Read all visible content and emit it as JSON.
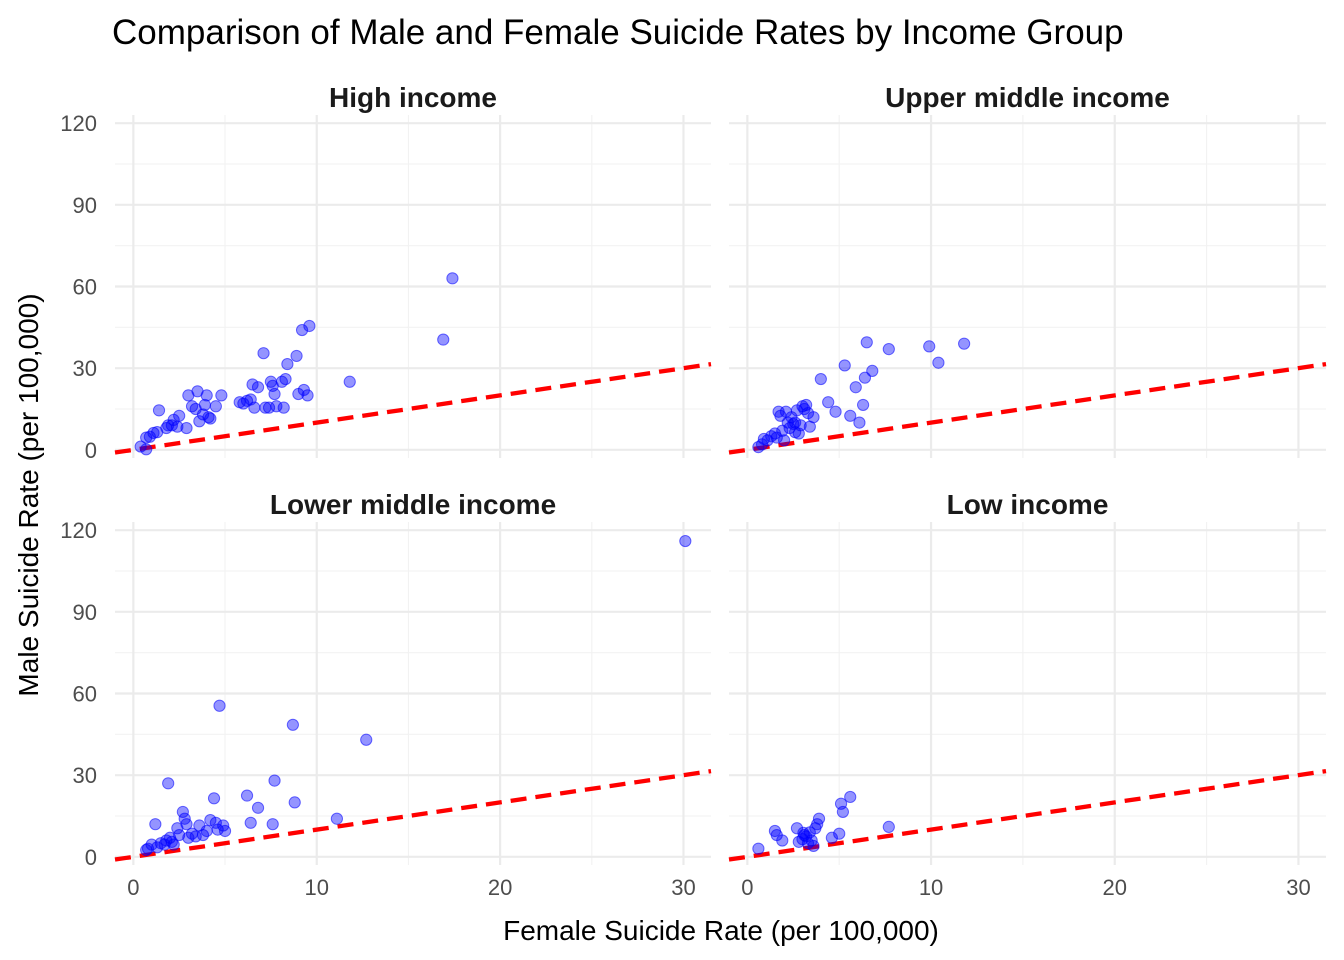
{
  "chart_data": {
    "type": "scatter",
    "title": "Comparison of Male and Female Suicide Rates by Income Group",
    "xlabel": "Female Suicide Rate (per 100,000)",
    "ylabel": "Male Suicide Rate (per 100,000)",
    "xlim": [
      -1,
      31.5
    ],
    "ylim": [
      -3,
      123
    ],
    "x_ticks": [
      0,
      10,
      20,
      30
    ],
    "y_ticks": [
      0,
      30,
      60,
      90,
      120
    ],
    "grid": true,
    "legend": "none",
    "point_color": "#0000FF",
    "reference_line": {
      "slope": 1,
      "intercept": 0,
      "color": "#FF0000",
      "style": "dashed"
    },
    "facets": [
      {
        "label": "High income",
        "points": [
          [
            0.4,
            1.2
          ],
          [
            0.7,
            0.2
          ],
          [
            0.7,
            4.5
          ],
          [
            0.9,
            4.8
          ],
          [
            1.1,
            6.2
          ],
          [
            1.3,
            6.5
          ],
          [
            1.4,
            14.5
          ],
          [
            1.8,
            8.0
          ],
          [
            1.9,
            9.0
          ],
          [
            2.1,
            9.0
          ],
          [
            2.2,
            11.0
          ],
          [
            2.4,
            8.5
          ],
          [
            2.5,
            12.5
          ],
          [
            2.9,
            8.0
          ],
          [
            3.0,
            20.0
          ],
          [
            3.2,
            16.0
          ],
          [
            3.4,
            15.0
          ],
          [
            3.5,
            21.5
          ],
          [
            3.6,
            10.5
          ],
          [
            3.8,
            13.0
          ],
          [
            3.9,
            16.5
          ],
          [
            4.0,
            20.0
          ],
          [
            4.1,
            12.0
          ],
          [
            4.2,
            11.5
          ],
          [
            4.5,
            16.0
          ],
          [
            4.8,
            20.0
          ],
          [
            5.8,
            17.5
          ],
          [
            6.0,
            17.0
          ],
          [
            6.2,
            18.0
          ],
          [
            6.4,
            18.5
          ],
          [
            6.5,
            24.0
          ],
          [
            6.6,
            15.5
          ],
          [
            6.8,
            23.0
          ],
          [
            7.1,
            35.5
          ],
          [
            7.2,
            15.5
          ],
          [
            7.4,
            15.5
          ],
          [
            7.5,
            25.0
          ],
          [
            7.6,
            23.5
          ],
          [
            7.7,
            20.5
          ],
          [
            7.8,
            16.0
          ],
          [
            8.1,
            25.0
          ],
          [
            8.3,
            26.0
          ],
          [
            8.4,
            31.5
          ],
          [
            8.9,
            34.5
          ],
          [
            9.0,
            20.5
          ],
          [
            9.2,
            44.0
          ],
          [
            9.3,
            22.0
          ],
          [
            9.5,
            20.0
          ],
          [
            9.6,
            45.5
          ],
          [
            11.8,
            25.0
          ],
          [
            16.9,
            40.5
          ],
          [
            17.4,
            63.0
          ],
          [
            8.2,
            15.5
          ]
        ]
      },
      {
        "label": "Upper middle income",
        "points": [
          [
            0.6,
            1.0
          ],
          [
            0.8,
            2.0
          ],
          [
            0.9,
            4.0
          ],
          [
            1.1,
            3.5
          ],
          [
            1.3,
            5.0
          ],
          [
            1.5,
            6.0
          ],
          [
            1.6,
            4.5
          ],
          [
            1.7,
            14.0
          ],
          [
            1.8,
            12.5
          ],
          [
            1.9,
            7.0
          ],
          [
            2.0,
            3.5
          ],
          [
            2.1,
            14.0
          ],
          [
            2.2,
            10.0
          ],
          [
            2.3,
            8.0
          ],
          [
            2.4,
            12.0
          ],
          [
            2.5,
            9.5
          ],
          [
            2.6,
            10.0
          ],
          [
            2.7,
            14.5
          ],
          [
            2.8,
            6.0
          ],
          [
            2.9,
            9.0
          ],
          [
            3.0,
            16.0
          ],
          [
            3.1,
            15.0
          ],
          [
            3.2,
            16.5
          ],
          [
            3.3,
            13.5
          ],
          [
            3.4,
            8.5
          ],
          [
            3.6,
            12.0
          ],
          [
            4.0,
            26.0
          ],
          [
            4.4,
            17.5
          ],
          [
            4.8,
            14.0
          ],
          [
            5.3,
            31.0
          ],
          [
            5.6,
            12.5
          ],
          [
            5.9,
            23.0
          ],
          [
            6.1,
            10.0
          ],
          [
            6.3,
            16.5
          ],
          [
            6.4,
            26.5
          ],
          [
            6.5,
            39.5
          ],
          [
            6.8,
            29.0
          ],
          [
            7.7,
            37.0
          ],
          [
            9.9,
            38.0
          ],
          [
            10.4,
            32.0
          ],
          [
            11.8,
            39.0
          ],
          [
            2.6,
            6.5
          ]
        ]
      },
      {
        "label": "Lower middle income",
        "points": [
          [
            0.7,
            2.5
          ],
          [
            0.8,
            3.0
          ],
          [
            1.0,
            4.5
          ],
          [
            1.2,
            12.0
          ],
          [
            1.3,
            3.5
          ],
          [
            1.5,
            5.0
          ],
          [
            1.7,
            4.5
          ],
          [
            1.8,
            6.0
          ],
          [
            1.9,
            27.0
          ],
          [
            2.0,
            7.0
          ],
          [
            2.1,
            5.5
          ],
          [
            2.2,
            4.5
          ],
          [
            2.4,
            10.5
          ],
          [
            2.5,
            8.0
          ],
          [
            2.7,
            16.5
          ],
          [
            2.8,
            14.0
          ],
          [
            2.9,
            12.0
          ],
          [
            3.0,
            7.0
          ],
          [
            3.2,
            8.5
          ],
          [
            3.4,
            7.5
          ],
          [
            3.6,
            11.5
          ],
          [
            3.8,
            8.0
          ],
          [
            4.0,
            9.5
          ],
          [
            4.2,
            13.5
          ],
          [
            4.4,
            21.5
          ],
          [
            4.5,
            12.5
          ],
          [
            4.6,
            10.0
          ],
          [
            4.7,
            55.5
          ],
          [
            4.9,
            11.5
          ],
          [
            5.0,
            9.5
          ],
          [
            6.2,
            22.5
          ],
          [
            6.4,
            12.5
          ],
          [
            6.8,
            18.0
          ],
          [
            7.6,
            12.0
          ],
          [
            7.7,
            28.0
          ],
          [
            8.7,
            48.5
          ],
          [
            8.8,
            20.0
          ],
          [
            11.1,
            14.0
          ],
          [
            12.7,
            43.0
          ],
          [
            30.1,
            116.0
          ]
        ]
      },
      {
        "label": "Low income",
        "points": [
          [
            0.6,
            3.0
          ],
          [
            1.5,
            9.5
          ],
          [
            1.6,
            8.0
          ],
          [
            1.9,
            6.0
          ],
          [
            2.7,
            10.5
          ],
          [
            2.8,
            5.5
          ],
          [
            3.0,
            6.5
          ],
          [
            3.1,
            8.0
          ],
          [
            3.2,
            7.5
          ],
          [
            3.3,
            5.0
          ],
          [
            3.4,
            9.0
          ],
          [
            3.5,
            6.0
          ],
          [
            3.6,
            4.0
          ],
          [
            3.7,
            10.5
          ],
          [
            3.8,
            12.0
          ],
          [
            3.9,
            14.0
          ],
          [
            4.6,
            7.0
          ],
          [
            5.0,
            8.5
          ],
          [
            5.1,
            19.5
          ],
          [
            5.2,
            16.5
          ],
          [
            5.6,
            22.0
          ],
          [
            7.7,
            11.0
          ],
          [
            3.05,
            8.8
          ]
        ]
      }
    ]
  }
}
